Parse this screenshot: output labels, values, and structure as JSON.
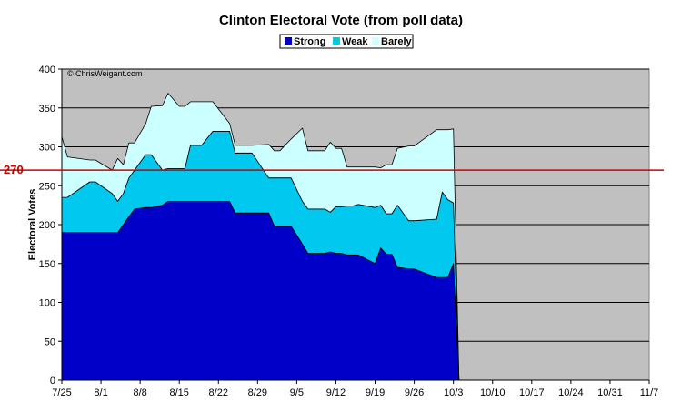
{
  "chart_data": {
    "type": "area",
    "stacked": true,
    "title": "Clinton Electoral Vote (from poll data)",
    "xlabel": "",
    "ylabel": "Electoral Votes",
    "ylim": [
      0,
      400
    ],
    "yticks": [
      0,
      50,
      100,
      150,
      200,
      250,
      300,
      350,
      400
    ],
    "xlim": [
      "7/25",
      "11/7"
    ],
    "xticks": [
      "7/25",
      "8/1",
      "8/8",
      "8/15",
      "8/22",
      "8/29",
      "9/5",
      "9/12",
      "9/19",
      "9/26",
      "10/3",
      "10/10",
      "10/17",
      "10/24",
      "10/31",
      "11/7"
    ],
    "grid": "horizontal",
    "legend_position": "top-center",
    "watermark": "© ChrisWeigant.com",
    "reference_line": {
      "value": 270,
      "label": "270",
      "color": "#cc0000"
    },
    "colors": {
      "plot_background": "#c0c0c0",
      "Strong": "#0000c8",
      "Weak": "#00c8ee",
      "Barely": "#ccffff"
    },
    "x": [
      "7/25",
      "7/26",
      "7/30",
      "7/31",
      "8/3",
      "8/4",
      "8/5",
      "8/6",
      "8/7",
      "8/9",
      "8/10",
      "8/12",
      "8/13",
      "8/15",
      "8/16",
      "8/17",
      "8/19",
      "8/21",
      "8/24",
      "8/25",
      "8/27",
      "8/28",
      "8/31",
      "9/1",
      "9/2",
      "9/4",
      "9/6",
      "9/7",
      "9/8",
      "9/9",
      "9/10",
      "9/11",
      "9/12",
      "9/13",
      "9/14",
      "9/15",
      "9/16",
      "9/19",
      "9/20",
      "9/21",
      "9/22",
      "9/23",
      "9/25",
      "9/26",
      "9/30",
      "10/1",
      "10/2",
      "10/3",
      "10/4"
    ],
    "series": [
      {
        "name": "Strong",
        "values": [
          190,
          190,
          190,
          190,
          190,
          190,
          200,
          210,
          220,
          222,
          222,
          225,
          230,
          230,
          230,
          230,
          230,
          230,
          230,
          215,
          215,
          215,
          215,
          198,
          198,
          198,
          175,
          163,
          163,
          163,
          163,
          165,
          163,
          163,
          161,
          161,
          161,
          150,
          170,
          162,
          162,
          145,
          143,
          143,
          132,
          132,
          132,
          150,
          0
        ]
      },
      {
        "name": "Weak",
        "values": [
          45,
          45,
          65,
          65,
          50,
          40,
          40,
          50,
          50,
          68,
          68,
          45,
          42,
          42,
          42,
          72,
          72,
          90,
          90,
          77,
          77,
          77,
          45,
          62,
          62,
          62,
          55,
          57,
          57,
          57,
          57,
          51,
          60,
          60,
          63,
          63,
          65,
          72,
          55,
          52,
          52,
          80,
          62,
          62,
          75,
          110,
          100,
          78,
          0
        ]
      },
      {
        "name": "Barely",
        "values": [
          78,
          52,
          28,
          28,
          30,
          55,
          37,
          45,
          35,
          40,
          62,
          83,
          97,
          80,
          80,
          56,
          56,
          38,
          10,
          10,
          10,
          10,
          43,
          35,
          35,
          50,
          94,
          75,
          75,
          75,
          75,
          90,
          75,
          75,
          50,
          50,
          48,
          52,
          48,
          63,
          63,
          73,
          96,
          96,
          115,
          80,
          90,
          95,
          0
        ]
      }
    ]
  }
}
